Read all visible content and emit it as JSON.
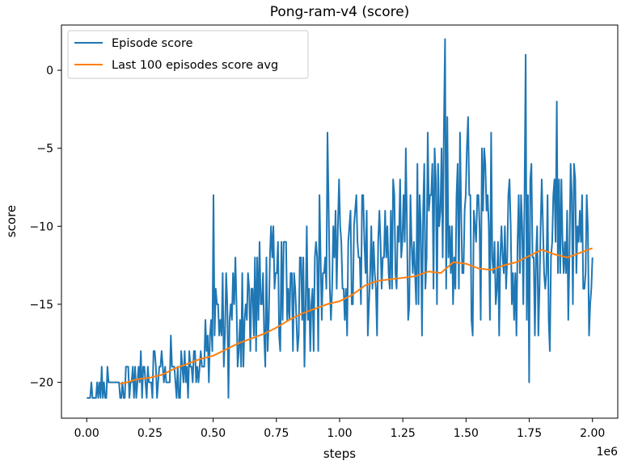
{
  "chart_data": {
    "type": "line",
    "title": "Pong-ram-v4 (score)",
    "xlabel": "steps",
    "ylabel": "score",
    "x_multiplier_label": "1e6",
    "xlim": [
      -0.1,
      2.1
    ],
    "ylim": [
      -22.3,
      2.9
    ],
    "x_ticks": [
      0.0,
      0.25,
      0.5,
      0.75,
      1.0,
      1.25,
      1.5,
      1.75,
      2.0
    ],
    "x_tick_labels": [
      "0.00",
      "0.25",
      "0.50",
      "0.75",
      "1.00",
      "1.25",
      "1.50",
      "1.75",
      "2.00"
    ],
    "y_ticks": [
      0,
      -5,
      -10,
      -15,
      -20
    ],
    "y_tick_labels": [
      "0",
      "−5",
      "−10",
      "−15",
      "−20"
    ],
    "grid": false,
    "legend_position": "top-left",
    "series": [
      {
        "name": "Episode score",
        "color": "#1f77b4",
        "generated_from_keypoints": true,
        "keypoints": {
          "x": [
            0.0,
            0.05,
            0.1,
            0.2,
            0.3,
            0.4,
            0.48,
            0.5,
            0.55,
            0.6,
            0.7,
            0.75,
            0.85,
            0.95,
            1.0,
            1.05,
            1.15,
            1.25,
            1.3,
            1.35,
            1.4,
            1.45,
            1.5,
            1.55,
            1.6,
            1.65,
            1.7,
            1.75,
            1.8,
            1.85,
            1.9,
            1.95,
            2.0
          ],
          "y": [
            -21,
            -20.5,
            -20.2,
            -19.8,
            -19.4,
            -19.0,
            -18.4,
            -17.0,
            -16.2,
            -15.6,
            -15.0,
            -14.2,
            -13.4,
            -12.8,
            -12.5,
            -12.2,
            -11.6,
            -11.2,
            -11.5,
            -11.2,
            -10.6,
            -10.4,
            -10.9,
            -11.2,
            -10.9,
            -10.7,
            -10.2,
            -10.0,
            -10.3,
            -10.5,
            -10.8,
            -11.0,
            -10.8
          ]
        },
        "spread_keypoints": [
          0.3,
          0.8,
          1.0,
          1.4,
          1.6,
          1.9,
          2.1,
          2.6,
          3.2,
          3.4,
          3.6,
          3.8,
          4.0,
          4.2,
          4.3,
          4.4,
          4.6,
          4.8,
          4.9,
          5.0,
          5.6,
          5.8,
          5.5,
          5.0,
          4.8,
          5.2,
          5.6,
          5.2,
          4.6,
          4.4,
          4.6,
          4.4,
          4.2
        ],
        "n_points": 440,
        "spikes": [
          {
            "x": 0.5,
            "y": -8
          },
          {
            "x": 0.56,
            "y": -21
          },
          {
            "x": 0.95,
            "y": -4
          },
          {
            "x": 1.415,
            "y": 2
          },
          {
            "x": 1.51,
            "y": -3
          },
          {
            "x": 1.6,
            "y": -4
          },
          {
            "x": 1.735,
            "y": 1
          },
          {
            "x": 1.75,
            "y": -20
          },
          {
            "x": 1.86,
            "y": -2
          },
          {
            "x": 1.83,
            "y": -18
          }
        ]
      },
      {
        "name": "Last 100 episodes score avg",
        "color": "#ff7f0e",
        "x": [
          0.13,
          0.16,
          0.2,
          0.25,
          0.3,
          0.35,
          0.4,
          0.45,
          0.5,
          0.55,
          0.6,
          0.65,
          0.7,
          0.75,
          0.8,
          0.85,
          0.9,
          0.95,
          1.0,
          1.05,
          1.1,
          1.15,
          1.2,
          1.25,
          1.3,
          1.35,
          1.4,
          1.45,
          1.5,
          1.55,
          1.6,
          1.65,
          1.7,
          1.75,
          1.8,
          1.85,
          1.9,
          1.95,
          2.0
        ],
        "y": [
          -20.1,
          -20.0,
          -19.8,
          -19.7,
          -19.5,
          -19.1,
          -18.8,
          -18.5,
          -18.3,
          -17.9,
          -17.5,
          -17.2,
          -16.9,
          -16.5,
          -16.0,
          -15.6,
          -15.3,
          -15.0,
          -14.8,
          -14.4,
          -13.8,
          -13.5,
          -13.4,
          -13.3,
          -13.2,
          -12.9,
          -13.0,
          -12.3,
          -12.4,
          -12.7,
          -12.8,
          -12.5,
          -12.3,
          -11.9,
          -11.5,
          -11.8,
          -12.0,
          -11.7,
          -11.4
        ]
      }
    ]
  }
}
